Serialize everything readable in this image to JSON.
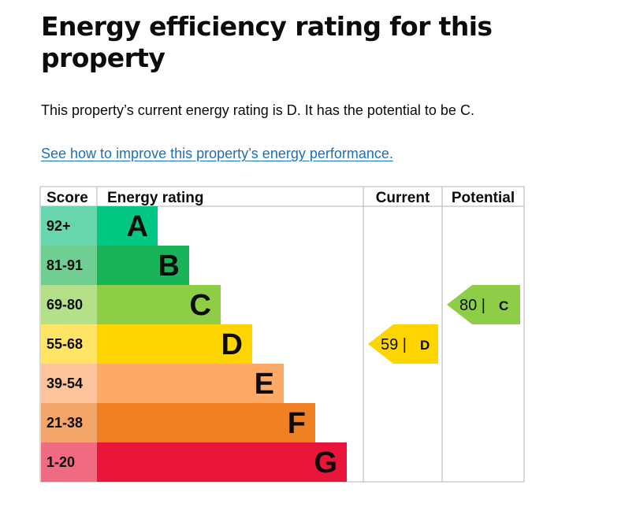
{
  "heading": "Energy efficiency rating for this property",
  "summary": "This property’s current energy rating is D. It has the potential to be C.",
  "link_text": "See how to improve this property’s energy performance.",
  "chart_data": {
    "type": "bar",
    "headers": {
      "score": "Score",
      "rating": "Energy rating",
      "current": "Current",
      "potential": "Potential"
    },
    "bands": [
      {
        "letter": "A",
        "range": "92+",
        "color": "#00c781",
        "score_color": "#67d6ad"
      },
      {
        "letter": "B",
        "range": "81-91",
        "color": "#19b459",
        "score_color": "#6fcf93"
      },
      {
        "letter": "C",
        "range": "69-80",
        "color": "#8dce46",
        "score_color": "#b4e08a"
      },
      {
        "letter": "D",
        "range": "55-68",
        "color": "#ffd500",
        "score_color": "#ffe466"
      },
      {
        "letter": "E",
        "range": "39-54",
        "color": "#fcaa65",
        "score_color": "#fdc49b"
      },
      {
        "letter": "F",
        "range": "21-38",
        "color": "#ef8023",
        "score_color": "#f4a66a"
      },
      {
        "letter": "G",
        "range": "1-20",
        "color": "#e9153b",
        "score_color": "#f06b82"
      }
    ],
    "current": {
      "value": 59,
      "band": "D",
      "color": "#ffd500"
    },
    "potential": {
      "value": 80,
      "band": "C",
      "color": "#8dce46"
    }
  }
}
